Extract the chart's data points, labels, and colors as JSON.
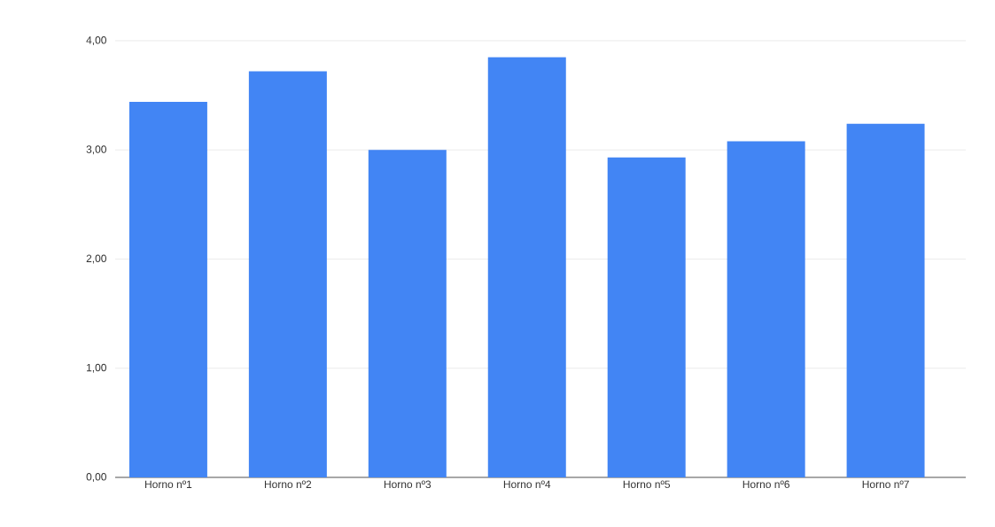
{
  "chart_data": {
    "type": "bar",
    "categories": [
      "Horno nº1",
      "Horno nº2",
      "Horno nº3",
      "Horno nº4",
      "Horno nº5",
      "Horno nº6",
      "Horno nº7"
    ],
    "values": [
      3.44,
      3.72,
      3.0,
      3.85,
      2.93,
      3.08,
      3.24
    ],
    "color": "#4285f4",
    "ylim": [
      0,
      4
    ],
    "yticks": [
      {
        "value": 0,
        "label": "0,00"
      },
      {
        "value": 1,
        "label": "1,00"
      },
      {
        "value": 2,
        "label": "2,00"
      },
      {
        "value": 3,
        "label": "3,00"
      },
      {
        "value": 4,
        "label": "4,00"
      }
    ],
    "grid": "y"
  }
}
